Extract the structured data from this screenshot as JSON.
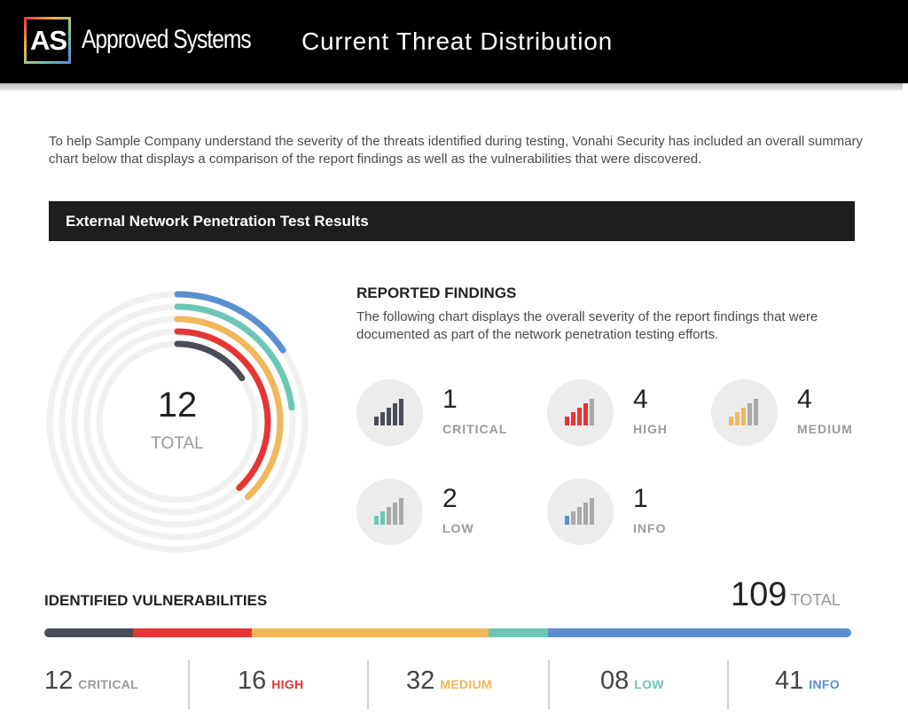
{
  "header": {
    "logo_mark": "AS",
    "brand_name": "Approved Systems",
    "title": "Current Threat Distribution"
  },
  "intro_text": "To help Sample Company understand the severity of the threats identified during testing, Vonahi Security has included an overall summary chart below that displays a comparison of the report findings as well as the vulnerabilities that were discovered.",
  "section_title": "External Network Penetration Test Results",
  "reported_findings": {
    "title": "REPORTED FINDINGS",
    "description": "The following chart displays the overall severity of the report findings that were documented as part of the network penetration testing efforts.",
    "total": "12",
    "total_label": "TOTAL",
    "items": [
      {
        "key": "critical",
        "count": "1",
        "label": "CRITICAL",
        "color": "#4a4d57"
      },
      {
        "key": "high",
        "count": "4",
        "label": "HIGH",
        "color": "#e63535"
      },
      {
        "key": "medium",
        "count": "4",
        "label": "MEDIUM",
        "color": "#f2b75a"
      },
      {
        "key": "low",
        "count": "2",
        "label": "LOW",
        "color": "#6cc7b5"
      },
      {
        "key": "info",
        "count": "1",
        "label": "INFO",
        "color": "#5b8fd0"
      }
    ]
  },
  "identified_vulnerabilities": {
    "title": "IDENTIFIED VULNERABILITIES",
    "total": "109",
    "total_label": "TOTAL",
    "items": [
      {
        "key": "critical",
        "count": "12",
        "label": "CRITICAL",
        "color": "#4a4d57",
        "label_color": "#9a9a9a"
      },
      {
        "key": "high",
        "count": "16",
        "label": "HIGH",
        "color": "#e63535",
        "label_color": "#e63535"
      },
      {
        "key": "medium",
        "count": "32",
        "label": "MEDIUM",
        "color": "#f2b75a",
        "label_color": "#f2b75a"
      },
      {
        "key": "low",
        "count": "08",
        "label": "LOW",
        "color": "#6cc7b5",
        "label_color": "#6cc7b5"
      },
      {
        "key": "info",
        "count": "41",
        "label": "INFO",
        "color": "#5b8fd0",
        "label_color": "#5b8fd0"
      }
    ]
  },
  "chart_data": [
    {
      "type": "radial-bar",
      "categories": [
        "CRITICAL",
        "HIGH",
        "MEDIUM",
        "LOW",
        "INFO"
      ],
      "values": [
        1,
        4,
        4,
        2,
        1
      ],
      "total": 12,
      "colors": [
        "#4a4d57",
        "#e63535",
        "#f2b75a",
        "#6cc7b5",
        "#5b8fd0"
      ]
    },
    {
      "type": "stacked-bar",
      "categories": [
        "CRITICAL",
        "HIGH",
        "MEDIUM",
        "LOW",
        "INFO"
      ],
      "values": [
        12,
        16,
        32,
        8,
        41
      ],
      "total": 109,
      "colors": [
        "#4a4d57",
        "#e63535",
        "#f2b75a",
        "#6cc7b5",
        "#5b8fd0"
      ]
    }
  ]
}
